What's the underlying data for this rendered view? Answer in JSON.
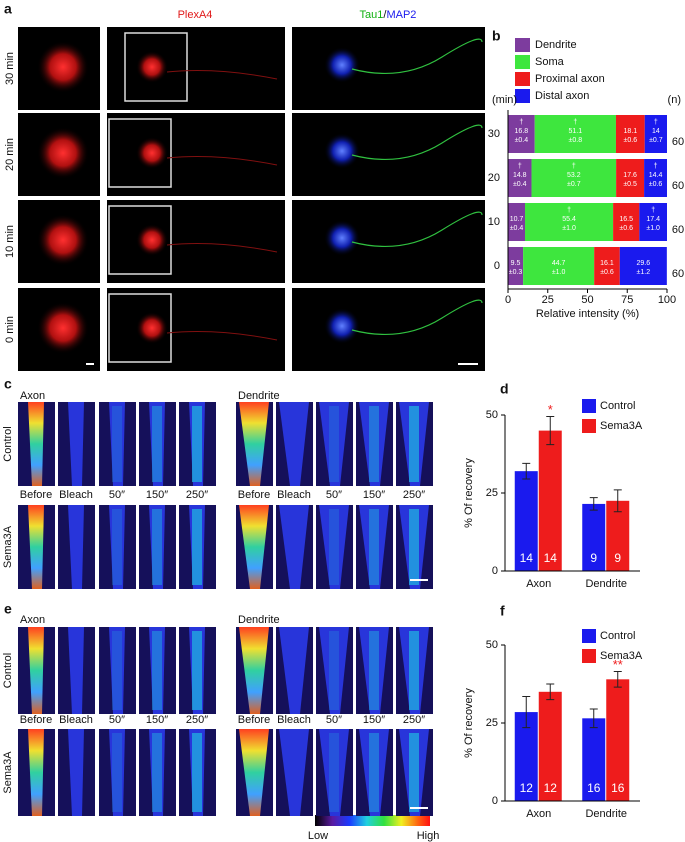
{
  "panel_a": {
    "label": "a",
    "header_left": "PlexA4",
    "header_tau1": "Tau1",
    "header_sep": "/",
    "header_map2": "MAP2",
    "rows": [
      "30 min",
      "20 min",
      "10 min",
      "0 min"
    ]
  },
  "panel_c": {
    "label": "c",
    "columns": [
      "Axon",
      "Dendrite"
    ],
    "rows": [
      "Control",
      "Sema3A"
    ],
    "time_labels": [
      "Before",
      "Bleach",
      "50″",
      "150″",
      "250″"
    ]
  },
  "panel_e": {
    "label": "e",
    "columns": [
      "Axon",
      "Dendrite"
    ],
    "rows": [
      "Control",
      "Sema3A"
    ],
    "time_labels": [
      "Before",
      "Bleach",
      "50″",
      "150″",
      "250″"
    ]
  },
  "colorbar": {
    "low": "Low",
    "high": "High"
  },
  "chart_data": [
    {
      "panel_label": "b",
      "type": "hbar",
      "stacked": true,
      "categories": [
        "30",
        "20",
        "10",
        "0"
      ],
      "category_label": "(min)",
      "n_label": "(n)",
      "n": [
        60,
        60,
        60,
        60
      ],
      "xlabel": "Relative intensity (%)",
      "xlim": [
        0,
        100
      ],
      "xticks": [
        0,
        25,
        50,
        75,
        100
      ],
      "legend": "top",
      "series": [
        {
          "name": "Dendrite",
          "color": "#7d3c9e",
          "values": [
            16.8,
            14.8,
            10.7,
            9.5
          ],
          "errors": [
            0.4,
            0.4,
            0.4,
            0.3
          ],
          "error_labels": [
            "±0.4",
            "±0.4",
            "±0.4",
            "±0.3"
          ],
          "markers": [
            "†",
            "†",
            null,
            null
          ]
        },
        {
          "name": "Soma",
          "color": "#3ee63e",
          "values": [
            51.1,
            53.2,
            55.4,
            44.7
          ],
          "errors": [
            0.8,
            0.7,
            1.0,
            1.0
          ],
          "error_labels": [
            "±0.8",
            "±0.7",
            "±1.0",
            "±1.0"
          ],
          "markers": [
            "†",
            "†",
            "†",
            null
          ]
        },
        {
          "name": "Proximal axon",
          "color": "#ee1c1c",
          "values": [
            18.1,
            17.6,
            16.5,
            16.1
          ],
          "errors": [
            0.6,
            0.5,
            0.6,
            0.6
          ],
          "error_labels": [
            "±0.6",
            "±0.5",
            "±0.6",
            "±0.6"
          ],
          "markers": [
            null,
            null,
            null,
            null
          ]
        },
        {
          "name": "Distal axon",
          "color": "#1a1aee",
          "values": [
            14.0,
            14.4,
            17.4,
            29.6
          ],
          "errors": [
            0.7,
            0.6,
            1.0,
            1.2
          ],
          "error_labels": [
            "±0.7",
            "±0.6",
            "±1.0",
            "±1.2"
          ],
          "markers": [
            "†",
            "†",
            "†",
            null
          ]
        }
      ]
    },
    {
      "panel_label": "d",
      "type": "bar",
      "categories": [
        "Axon",
        "Dendrite"
      ],
      "ylabel": "% Of recovery",
      "ylim": [
        0,
        50
      ],
      "yticks": [
        0,
        25,
        50
      ],
      "legend": "upper right",
      "series": [
        {
          "name": "Control",
          "color": "#1a1aee",
          "values": [
            32,
            21.5
          ],
          "errors": [
            2.5,
            2
          ],
          "n": [
            14,
            9
          ],
          "significance": [
            null,
            null
          ]
        },
        {
          "name": "Sema3A",
          "color": "#ee1c1c",
          "values": [
            45,
            22.5
          ],
          "errors": [
            4.5,
            3.5
          ],
          "n": [
            14,
            9
          ],
          "significance": [
            "*",
            null
          ]
        }
      ]
    },
    {
      "panel_label": "f",
      "type": "bar",
      "categories": [
        "Axon",
        "Dendrite"
      ],
      "ylabel": "% Of recovery",
      "ylim": [
        0,
        50
      ],
      "yticks": [
        0,
        25,
        50
      ],
      "legend": "upper right",
      "series": [
        {
          "name": "Control",
          "color": "#1a1aee",
          "values": [
            28.5,
            26.5
          ],
          "errors": [
            5,
            3
          ],
          "n": [
            12,
            16
          ],
          "significance": [
            null,
            null
          ]
        },
        {
          "name": "Sema3A",
          "color": "#ee1c1c",
          "values": [
            35,
            39
          ],
          "errors": [
            2.5,
            2.5
          ],
          "n": [
            12,
            16
          ],
          "significance": [
            null,
            "**"
          ]
        }
      ]
    }
  ]
}
